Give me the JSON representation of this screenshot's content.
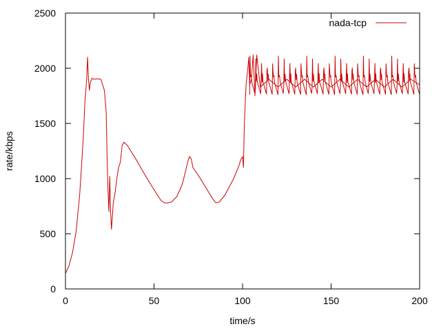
{
  "chart_data": {
    "type": "line",
    "xlabel": "time/s",
    "ylabel": "rate/kbps",
    "xlim": [
      0,
      200
    ],
    "ylim": [
      0,
      2500
    ],
    "x_ticks": [
      0,
      50,
      100,
      150,
      200
    ],
    "y_ticks": [
      0,
      500,
      1000,
      1500,
      2000,
      2500
    ],
    "x_tick_labels": [
      "0",
      "50",
      "100",
      "150",
      "200"
    ],
    "y_tick_labels": [
      "0",
      "500",
      "1000",
      "1500",
      "2000",
      "2500"
    ],
    "grid": false,
    "legend": {
      "position": "top-right"
    },
    "series": [
      {
        "name": "nada-tcp",
        "color": "#cc0000",
        "x": [
          0,
          2,
          4,
          6,
          8,
          10,
          11,
          12,
          12.5,
          13,
          13.5,
          14,
          15,
          16,
          18,
          20,
          22,
          23,
          23.5,
          24,
          24.5,
          25,
          25.5,
          26,
          27,
          28,
          29,
          30,
          31,
          32,
          33,
          35,
          40,
          45,
          50,
          52,
          54,
          56,
          58,
          60,
          63,
          66,
          68,
          69,
          70,
          71,
          72,
          75,
          80,
          83,
          85,
          87,
          90,
          95,
          98,
          99,
          100,
          100.5,
          101,
          102,
          103,
          103.5,
          104,
          105,
          106,
          107,
          108,
          110,
          115,
          120,
          125,
          130,
          135,
          140,
          145,
          150,
          155,
          160,
          165,
          170,
          175,
          180,
          185,
          190,
          195,
          200
        ],
        "y": [
          140,
          210,
          330,
          520,
          850,
          1350,
          1700,
          1900,
          2100,
          1900,
          1800,
          1870,
          1910,
          1900,
          1905,
          1900,
          1800,
          1600,
          1200,
          900,
          700,
          1020,
          700,
          540,
          780,
          870,
          1000,
          1100,
          1150,
          1300,
          1330,
          1300,
          1170,
          1030,
          900,
          850,
          800,
          780,
          780,
          790,
          840,
          950,
          1080,
          1150,
          1200,
          1180,
          1100,
          1030,
          900,
          820,
          780,
          790,
          850,
          1000,
          1120,
          1170,
          1200,
          1100,
          1500,
          1850,
          2000,
          2100,
          1850,
          1900,
          2120,
          1750,
          2120,
          1830,
          1900,
          1830,
          1900,
          1830,
          1900,
          1830,
          1900,
          1830,
          1900,
          1830,
          1900,
          1830,
          1900,
          1830,
          1900,
          1830,
          1900,
          1850
        ]
      }
    ]
  }
}
